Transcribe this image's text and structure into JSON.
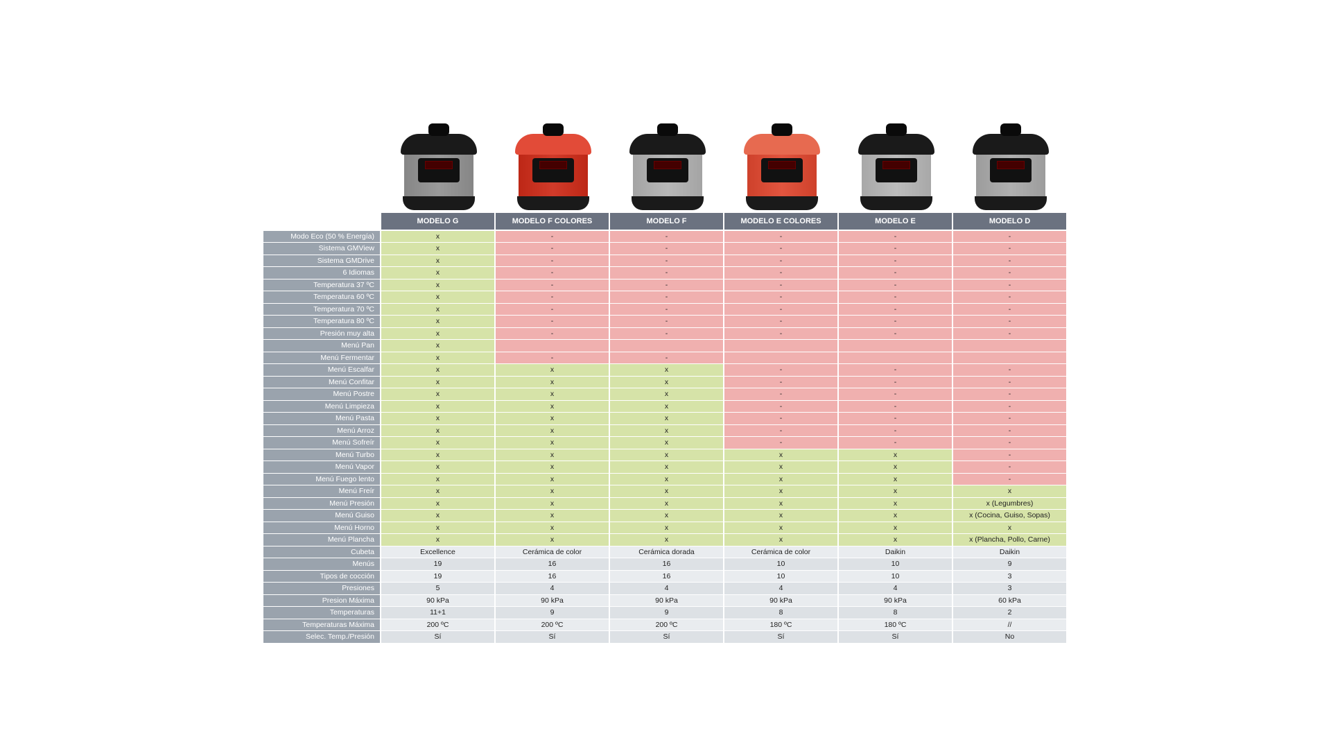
{
  "colors": {
    "yes": "#d6e3a8",
    "no": "#f0b0af",
    "plain_even": "#e9ecef",
    "plain_odd": "#dde1e5",
    "header_bg": "#6b7280",
    "label_bg": "#9aa3ad",
    "text": "#222222"
  },
  "yes_glyph": "x",
  "no_glyph": "-",
  "models": [
    {
      "label": "MODELO G",
      "body_color": "#9a9a9a",
      "lid_color": "#1a1a1a",
      "accent": "#555"
    },
    {
      "label": "MODELO F COLORES",
      "body_color": "#d13b2a",
      "lid_color": "#e24b38",
      "accent": "#222"
    },
    {
      "label": "MODELO F",
      "body_color": "#b8b8b8",
      "lid_color": "#1a1a1a",
      "accent": "#444"
    },
    {
      "label": "MODELO E COLORES",
      "body_color": "#e2553f",
      "lid_color": "#e76a50",
      "accent": "#333"
    },
    {
      "label": "MODELO E",
      "body_color": "#bcbcbc",
      "lid_color": "#1a1a1a",
      "accent": "#444"
    },
    {
      "label": "MODELO D",
      "body_color": "#b0b0b0",
      "lid_color": "#1a1a1a",
      "accent": "#333"
    }
  ],
  "rows": [
    {
      "label": "Modo Eco (50 % Energía)",
      "type": "bool",
      "cells": [
        {
          "v": true
        },
        {
          "v": false
        },
        {
          "v": false
        },
        {
          "v": false
        },
        {
          "v": false
        },
        {
          "v": false
        }
      ]
    },
    {
      "label": "Sistema GMView",
      "type": "bool",
      "cells": [
        {
          "v": true
        },
        {
          "v": false
        },
        {
          "v": false
        },
        {
          "v": false
        },
        {
          "v": false
        },
        {
          "v": false
        }
      ]
    },
    {
      "label": "Sistema GMDrive",
      "type": "bool",
      "cells": [
        {
          "v": true
        },
        {
          "v": false
        },
        {
          "v": false
        },
        {
          "v": false
        },
        {
          "v": false
        },
        {
          "v": false
        }
      ]
    },
    {
      "label": "6 Idiomas",
      "type": "bool",
      "cells": [
        {
          "v": true
        },
        {
          "v": false
        },
        {
          "v": false
        },
        {
          "v": false
        },
        {
          "v": false
        },
        {
          "v": false
        }
      ]
    },
    {
      "label": "Temperatura 37 ºC",
      "type": "bool",
      "cells": [
        {
          "v": true
        },
        {
          "v": false
        },
        {
          "v": false
        },
        {
          "v": false
        },
        {
          "v": false
        },
        {
          "v": false
        }
      ]
    },
    {
      "label": "Temperatura 60 ºC",
      "type": "bool",
      "cells": [
        {
          "v": true
        },
        {
          "v": false
        },
        {
          "v": false
        },
        {
          "v": false
        },
        {
          "v": false
        },
        {
          "v": false
        }
      ]
    },
    {
      "label": "Temperatura 70 ºC",
      "type": "bool",
      "cells": [
        {
          "v": true
        },
        {
          "v": false
        },
        {
          "v": false
        },
        {
          "v": false
        },
        {
          "v": false
        },
        {
          "v": false
        }
      ]
    },
    {
      "label": "Temperatura 80 ºC",
      "type": "bool",
      "cells": [
        {
          "v": true
        },
        {
          "v": false
        },
        {
          "v": false
        },
        {
          "v": false
        },
        {
          "v": false
        },
        {
          "v": false
        }
      ]
    },
    {
      "label": "Presión muy alta",
      "type": "bool",
      "cells": [
        {
          "v": true
        },
        {
          "v": false
        },
        {
          "v": false
        },
        {
          "v": false
        },
        {
          "v": false
        },
        {
          "v": false
        }
      ]
    },
    {
      "label": "Menú Pan",
      "type": "bool",
      "cells": [
        {
          "v": true
        },
        {
          "v": false,
          "text": ""
        },
        {
          "v": false,
          "text": ""
        },
        {
          "v": false,
          "text": ""
        },
        {
          "v": false,
          "text": ""
        },
        {
          "v": false,
          "text": ""
        }
      ]
    },
    {
      "label": "Menú Fermentar",
      "type": "bool",
      "cells": [
        {
          "v": true
        },
        {
          "v": false
        },
        {
          "v": false
        },
        {
          "v": false,
          "text": ""
        },
        {
          "v": false,
          "text": ""
        },
        {
          "v": false,
          "text": ""
        }
      ]
    },
    {
      "label": "Menú Escalfar",
      "type": "bool",
      "cells": [
        {
          "v": true
        },
        {
          "v": true
        },
        {
          "v": true
        },
        {
          "v": false
        },
        {
          "v": false
        },
        {
          "v": false
        }
      ]
    },
    {
      "label": "Menú Confitar",
      "type": "bool",
      "cells": [
        {
          "v": true
        },
        {
          "v": true
        },
        {
          "v": true
        },
        {
          "v": false
        },
        {
          "v": false
        },
        {
          "v": false
        }
      ]
    },
    {
      "label": "Menú Postre",
      "type": "bool",
      "cells": [
        {
          "v": true
        },
        {
          "v": true
        },
        {
          "v": true
        },
        {
          "v": false
        },
        {
          "v": false
        },
        {
          "v": false
        }
      ]
    },
    {
      "label": "Menú Limpieza",
      "type": "bool",
      "cells": [
        {
          "v": true
        },
        {
          "v": true
        },
        {
          "v": true
        },
        {
          "v": false
        },
        {
          "v": false
        },
        {
          "v": false
        }
      ]
    },
    {
      "label": "Menú Pasta",
      "type": "bool",
      "cells": [
        {
          "v": true
        },
        {
          "v": true
        },
        {
          "v": true
        },
        {
          "v": false
        },
        {
          "v": false
        },
        {
          "v": false
        }
      ]
    },
    {
      "label": "Menú Arroz",
      "type": "bool",
      "cells": [
        {
          "v": true
        },
        {
          "v": true
        },
        {
          "v": true
        },
        {
          "v": false
        },
        {
          "v": false
        },
        {
          "v": false
        }
      ]
    },
    {
      "label": "Menú Sofreír",
      "type": "bool",
      "cells": [
        {
          "v": true
        },
        {
          "v": true
        },
        {
          "v": true
        },
        {
          "v": false
        },
        {
          "v": false
        },
        {
          "v": false
        }
      ]
    },
    {
      "label": "Menú Turbo",
      "type": "bool",
      "cells": [
        {
          "v": true
        },
        {
          "v": true
        },
        {
          "v": true
        },
        {
          "v": true
        },
        {
          "v": true
        },
        {
          "v": false
        }
      ]
    },
    {
      "label": "Menú Vapor",
      "type": "bool",
      "cells": [
        {
          "v": true
        },
        {
          "v": true
        },
        {
          "v": true
        },
        {
          "v": true
        },
        {
          "v": true
        },
        {
          "v": false
        }
      ]
    },
    {
      "label": "Menú Fuego lento",
      "type": "bool",
      "cells": [
        {
          "v": true
        },
        {
          "v": true
        },
        {
          "v": true
        },
        {
          "v": true
        },
        {
          "v": true
        },
        {
          "v": false
        }
      ]
    },
    {
      "label": "Menú Freír",
      "type": "bool",
      "cells": [
        {
          "v": true
        },
        {
          "v": true
        },
        {
          "v": true
        },
        {
          "v": true
        },
        {
          "v": true
        },
        {
          "v": true
        }
      ]
    },
    {
      "label": "Menú Presión",
      "type": "bool",
      "cells": [
        {
          "v": true
        },
        {
          "v": true
        },
        {
          "v": true
        },
        {
          "v": true
        },
        {
          "v": true
        },
        {
          "v": true,
          "text": "x (Legumbres)"
        }
      ]
    },
    {
      "label": "Menú Guiso",
      "type": "bool",
      "cells": [
        {
          "v": true
        },
        {
          "v": true
        },
        {
          "v": true
        },
        {
          "v": true
        },
        {
          "v": true
        },
        {
          "v": true,
          "text": "x (Cocina, Guiso, Sopas)"
        }
      ]
    },
    {
      "label": "Menú Horno",
      "type": "bool",
      "cells": [
        {
          "v": true
        },
        {
          "v": true
        },
        {
          "v": true
        },
        {
          "v": true
        },
        {
          "v": true
        },
        {
          "v": true
        }
      ]
    },
    {
      "label": "Menú Plancha",
      "type": "bool",
      "cells": [
        {
          "v": true
        },
        {
          "v": true
        },
        {
          "v": true
        },
        {
          "v": true
        },
        {
          "v": true
        },
        {
          "v": true,
          "text": "x (Plancha, Pollo, Carne)"
        }
      ]
    },
    {
      "label": "Cubeta",
      "type": "plain",
      "cells": [
        {
          "text": "Excellence"
        },
        {
          "text": "Cerámica de color"
        },
        {
          "text": "Cerámica dorada"
        },
        {
          "text": "Cerámica de color"
        },
        {
          "text": "Daikin"
        },
        {
          "text": "Daikin"
        }
      ]
    },
    {
      "label": "Menús",
      "type": "plain",
      "cells": [
        {
          "text": "19"
        },
        {
          "text": "16"
        },
        {
          "text": "16"
        },
        {
          "text": "10"
        },
        {
          "text": "10"
        },
        {
          "text": "9"
        }
      ]
    },
    {
      "label": "Tipos de cocción",
      "type": "plain",
      "cells": [
        {
          "text": "19"
        },
        {
          "text": "16"
        },
        {
          "text": "16"
        },
        {
          "text": "10"
        },
        {
          "text": "10"
        },
        {
          "text": "3"
        }
      ]
    },
    {
      "label": "Presiones",
      "type": "plain",
      "cells": [
        {
          "text": "5"
        },
        {
          "text": "4"
        },
        {
          "text": "4"
        },
        {
          "text": "4"
        },
        {
          "text": "4"
        },
        {
          "text": "3"
        }
      ]
    },
    {
      "label": "Presion Máxima",
      "type": "plain",
      "cells": [
        {
          "text": "90 kPa"
        },
        {
          "text": "90 kPa"
        },
        {
          "text": "90 kPa"
        },
        {
          "text": "90 kPa"
        },
        {
          "text": "90 kPa"
        },
        {
          "text": "60 kPa"
        }
      ]
    },
    {
      "label": "Temperaturas",
      "type": "plain",
      "cells": [
        {
          "text": "11+1"
        },
        {
          "text": "9"
        },
        {
          "text": "9"
        },
        {
          "text": "8"
        },
        {
          "text": "8"
        },
        {
          "text": "2"
        }
      ]
    },
    {
      "label": "Temperaturas Máxima",
      "type": "plain",
      "cells": [
        {
          "text": "200 ºC"
        },
        {
          "text": "200 ºC"
        },
        {
          "text": "200 ºC"
        },
        {
          "text": "180 ºC"
        },
        {
          "text": "180 ºC"
        },
        {
          "text": "//"
        }
      ]
    },
    {
      "label": "Selec. Temp./Presión",
      "type": "plain",
      "cells": [
        {
          "text": "Sí"
        },
        {
          "text": "Sí"
        },
        {
          "text": "Sí"
        },
        {
          "text": "Sí"
        },
        {
          "text": "Sí"
        },
        {
          "text": "No"
        }
      ]
    }
  ]
}
